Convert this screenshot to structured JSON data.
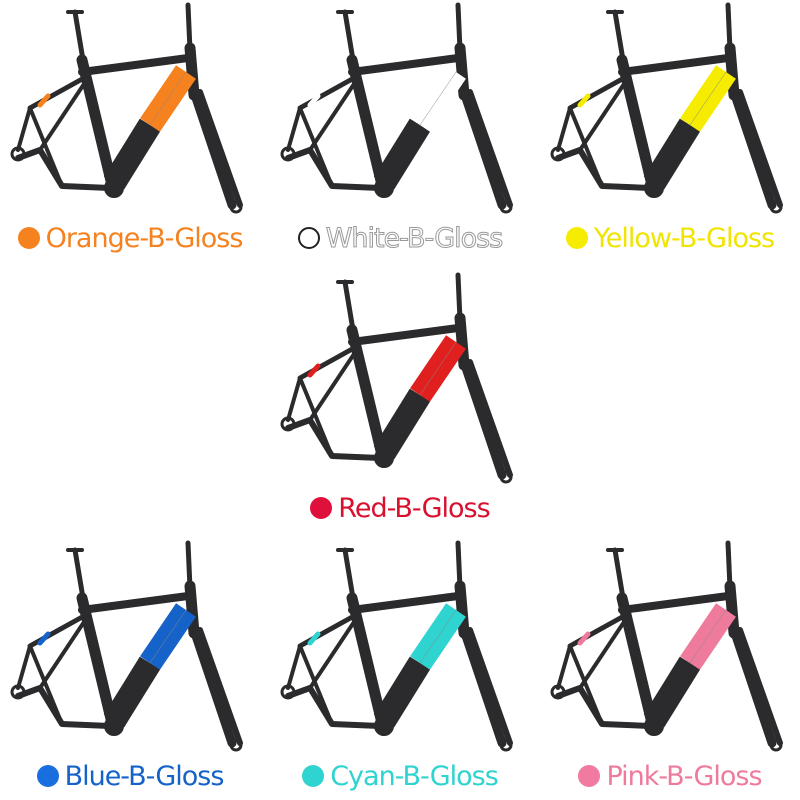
{
  "variants": [
    {
      "label": "Orange-B-Gloss",
      "color": "#f5821f"
    },
    {
      "label": "White-B-Gloss",
      "color": "#ffffff"
    },
    {
      "label": "Yellow-B-Gloss",
      "color": "#f5ec00"
    },
    {
      "label": "Red-B-Gloss",
      "color": "#e0201e"
    },
    {
      "label": "Blue-B-Gloss",
      "color": "#1563c8"
    },
    {
      "label": "Cyan-B-Gloss",
      "color": "#2fd3cf"
    },
    {
      "label": "Pink-B-Gloss",
      "color": "#ef7b9c"
    }
  ],
  "frame_color": "#2b2b2d",
  "dot_colors": {
    "Orange-B-Gloss": "#f5821f",
    "White-B-Gloss": "#ffffff",
    "Yellow-B-Gloss": "#f5ec00",
    "Red-B-Gloss": "#e0103c",
    "Blue-B-Gloss": "#1a6fe0",
    "Cyan-B-Gloss": "#2fd3cf",
    "Pink-B-Gloss": "#f07aa0"
  }
}
